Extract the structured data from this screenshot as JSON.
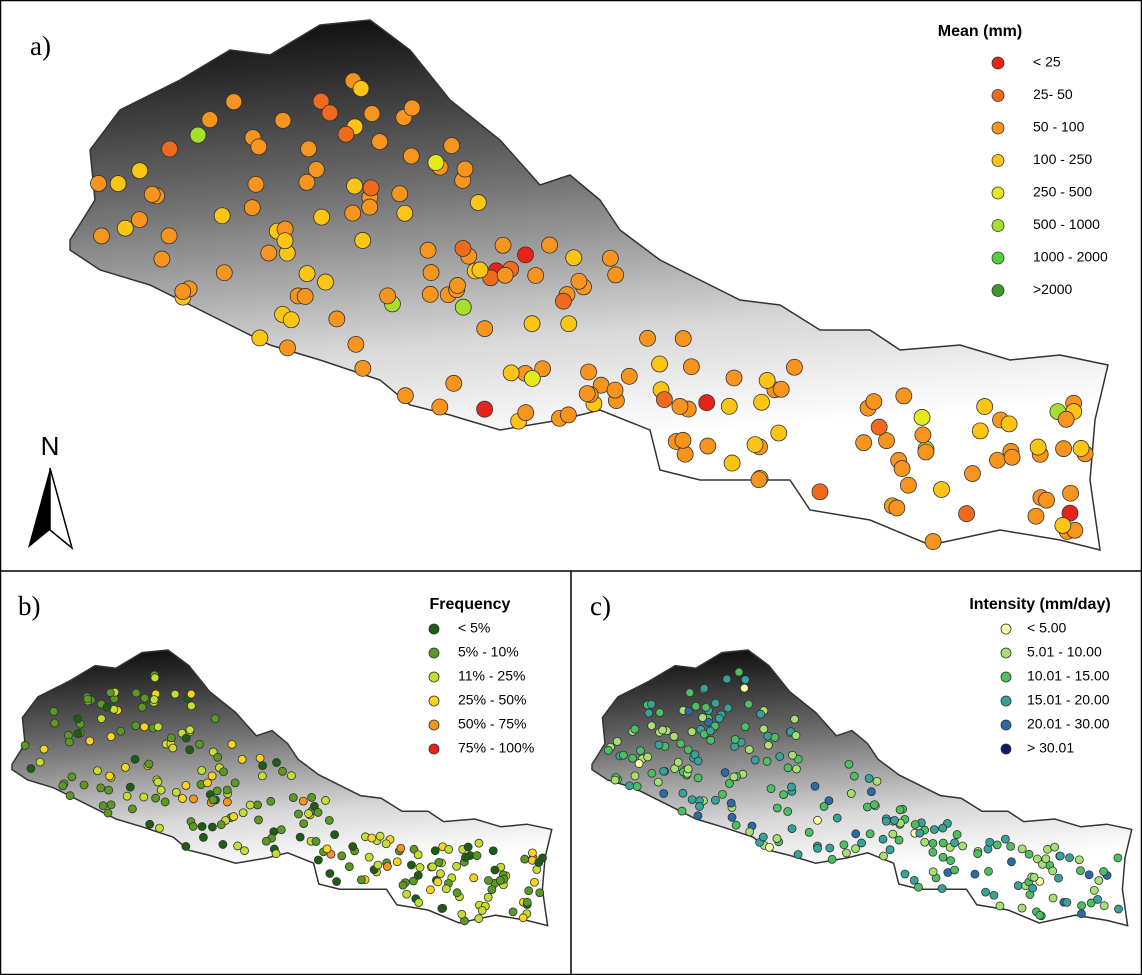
{
  "north_label": "N",
  "panels": [
    {
      "label": "a)",
      "legend": {
        "title": "Mean (mm)",
        "items": [
          {
            "label": "< 25",
            "color": "#e8231a"
          },
          {
            "label": "25- 50",
            "color": "#f06a1e"
          },
          {
            "label": "50 - 100",
            "color": "#f7941d"
          },
          {
            "label": "100 - 250",
            "color": "#fcc513"
          },
          {
            "label": "250 - 500",
            "color": "#e4e81c"
          },
          {
            "label": "500 - 1000",
            "color": "#a6e02a"
          },
          {
            "label": "1000 - 2000",
            "color": "#4fcf3a"
          },
          {
            "label": ">2000",
            "color": "#3a9a2a"
          }
        ]
      }
    },
    {
      "label": "b)",
      "legend": {
        "title": "Frequency",
        "items": [
          {
            "label": "< 5%",
            "color": "#1d5e14"
          },
          {
            "label": "5% - 10%",
            "color": "#5a9a22"
          },
          {
            "label": "11% - 25%",
            "color": "#c5dd2e"
          },
          {
            "label": "25% - 50%",
            "color": "#f9d418"
          },
          {
            "label": "50% - 75%",
            "color": "#f7941d"
          },
          {
            "label": "75% - 100%",
            "color": "#e8231a"
          }
        ]
      }
    },
    {
      "label": "c)",
      "legend": {
        "title": "Intensity (mm/day)",
        "items": [
          {
            "label": "< 5.00",
            "color": "#ffffa8"
          },
          {
            "label": "5.01 - 10.00",
            "color": "#a6e070"
          },
          {
            "label": "10.01 - 15.00",
            "color": "#4cc060"
          },
          {
            "label": "15.01 - 20.00",
            "color": "#35a39a"
          },
          {
            "label": "20.01 - 30.00",
            "color": "#2a6aa6"
          },
          {
            "label": "> 30.01",
            "color": "#101a6a"
          }
        ]
      }
    }
  ]
}
